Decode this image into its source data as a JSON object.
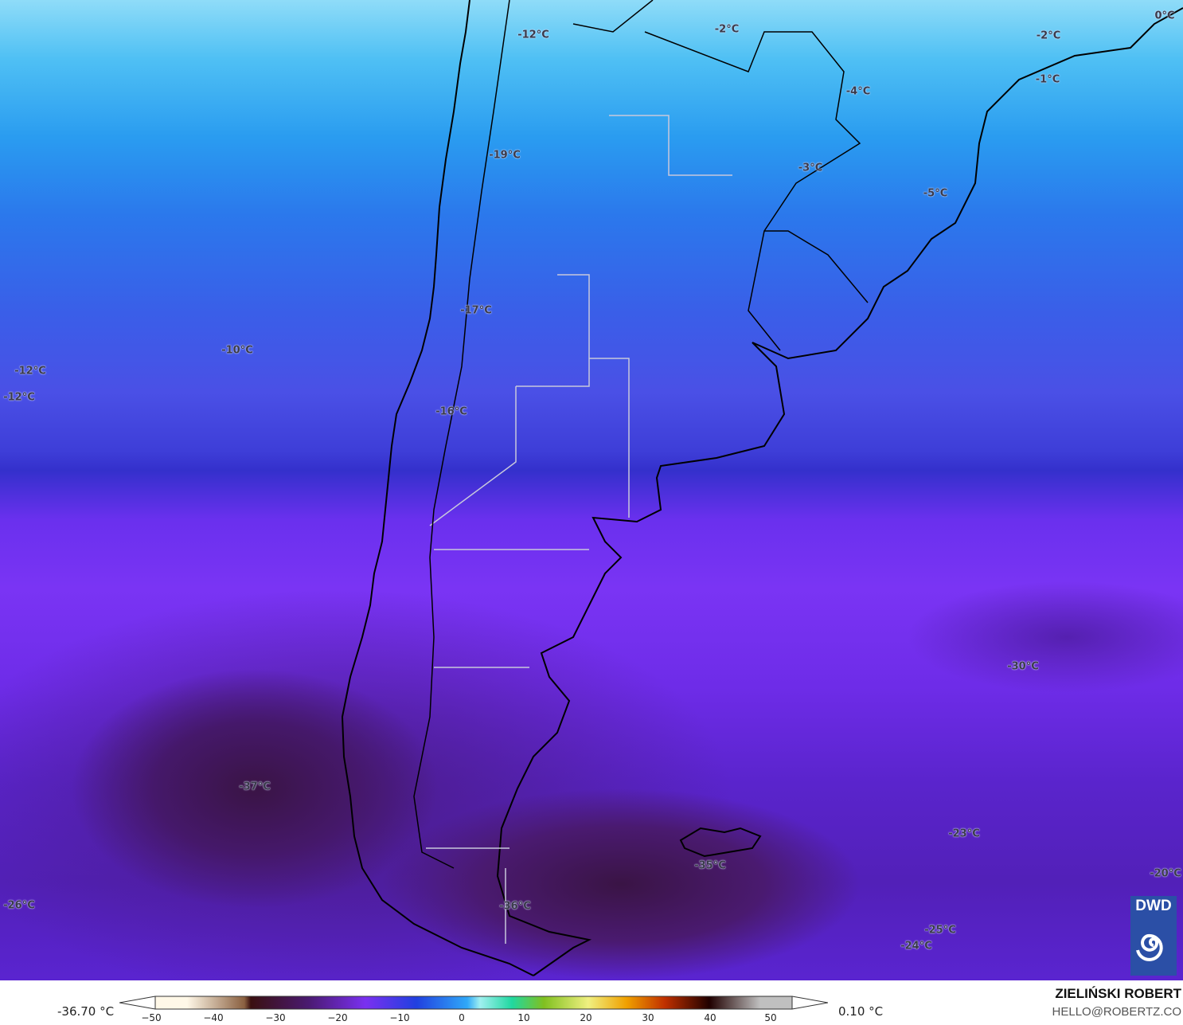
{
  "map": {
    "labels": [
      "-12°C",
      "-2°C",
      "0°C",
      "-2°C",
      "-1°C",
      "-4°C",
      "-19°C",
      "-3°C",
      "-5°C",
      "-17°C",
      "-10°C",
      "-12°C",
      "-12°C",
      "-16°C",
      "-30°C",
      "-37°C",
      "-23°C",
      "-35°C",
      "-20°C",
      "-26°C",
      "-36°C",
      "-25°C",
      "-24°C"
    ],
    "logo": "DWD"
  },
  "legend": {
    "min_value": "-36.70 °C",
    "max_value": "0.10 °C",
    "ticks": [
      "−50",
      "−40",
      "−30",
      "−20",
      "−10",
      "0",
      "10",
      "20",
      "30",
      "40",
      "50"
    ],
    "colors": [
      "#fff8e8",
      "#8a6040",
      "#3a1010",
      "#4a1a70",
      "#7a30f0",
      "#2040e0",
      "#30a8f8",
      "#a0f0f0",
      "#20d8a0",
      "#80c020",
      "#f0f080",
      "#f0a000",
      "#c03000",
      "#200000",
      "#c0c0c0"
    ]
  },
  "credits": {
    "author": "ZIELIŃSKI ROBERT",
    "email": "HELLO@ROBERTZ.CO"
  }
}
